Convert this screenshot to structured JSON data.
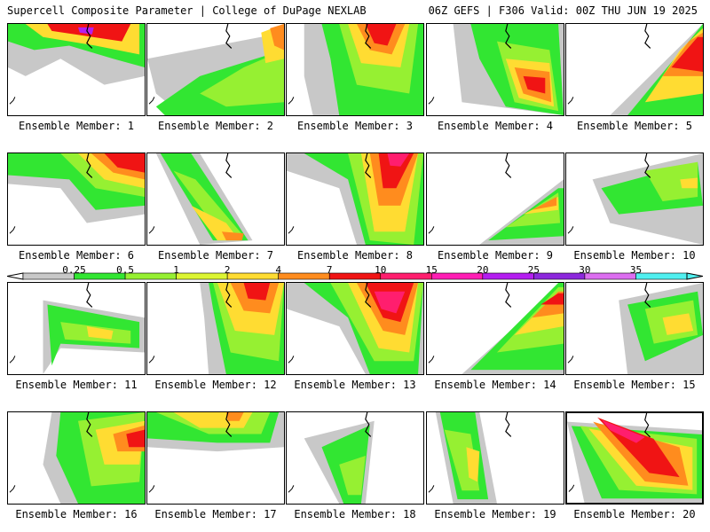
{
  "header": {
    "left": "Supercell Composite Parameter | College of DuPage NEXLAB",
    "right": "06Z GEFS | F306 Valid: 00Z THU JUN 19 2025"
  },
  "colorbar": {
    "labels": [
      "0.25",
      "0.5",
      "1",
      "2",
      "4",
      "7",
      "10",
      "15",
      "20",
      "25",
      "30",
      "35"
    ],
    "colors": [
      "#c8c8c8",
      "#32e632",
      "#96f032",
      "#dcf532",
      "#ffdc32",
      "#ff8c1e",
      "#f01414",
      "#ff1e6e",
      "#ff1eb4",
      "#b41ef0",
      "#8c28dc",
      "#dc6ef0",
      "#50f0f0"
    ]
  },
  "members": [
    {
      "label": "Ensemble Member: 1"
    },
    {
      "label": "Ensemble Member: 2"
    },
    {
      "label": "Ensemble Member: 3"
    },
    {
      "label": "Ensemble Member: 4"
    },
    {
      "label": "Ensemble Member: 5"
    },
    {
      "label": "Ensemble Member: 6"
    },
    {
      "label": "Ensemble Member: 7"
    },
    {
      "label": "Ensemble Member: 8"
    },
    {
      "label": "Ensemble Member: 9"
    },
    {
      "label": "Ensemble Member: 10"
    },
    {
      "label": "Ensemble Member: 11"
    },
    {
      "label": "Ensemble Member: 12"
    },
    {
      "label": "Ensemble Member: 13"
    },
    {
      "label": "Ensemble Member: 14"
    },
    {
      "label": "Ensemble Member: 15"
    },
    {
      "label": "Ensemble Member: 16"
    },
    {
      "label": "Ensemble Member: 17"
    },
    {
      "label": "Ensemble Member: 18"
    },
    {
      "label": "Ensemble Member: 19"
    },
    {
      "label": "Ensemble Member: 20",
      "highlighted": true
    }
  ]
}
